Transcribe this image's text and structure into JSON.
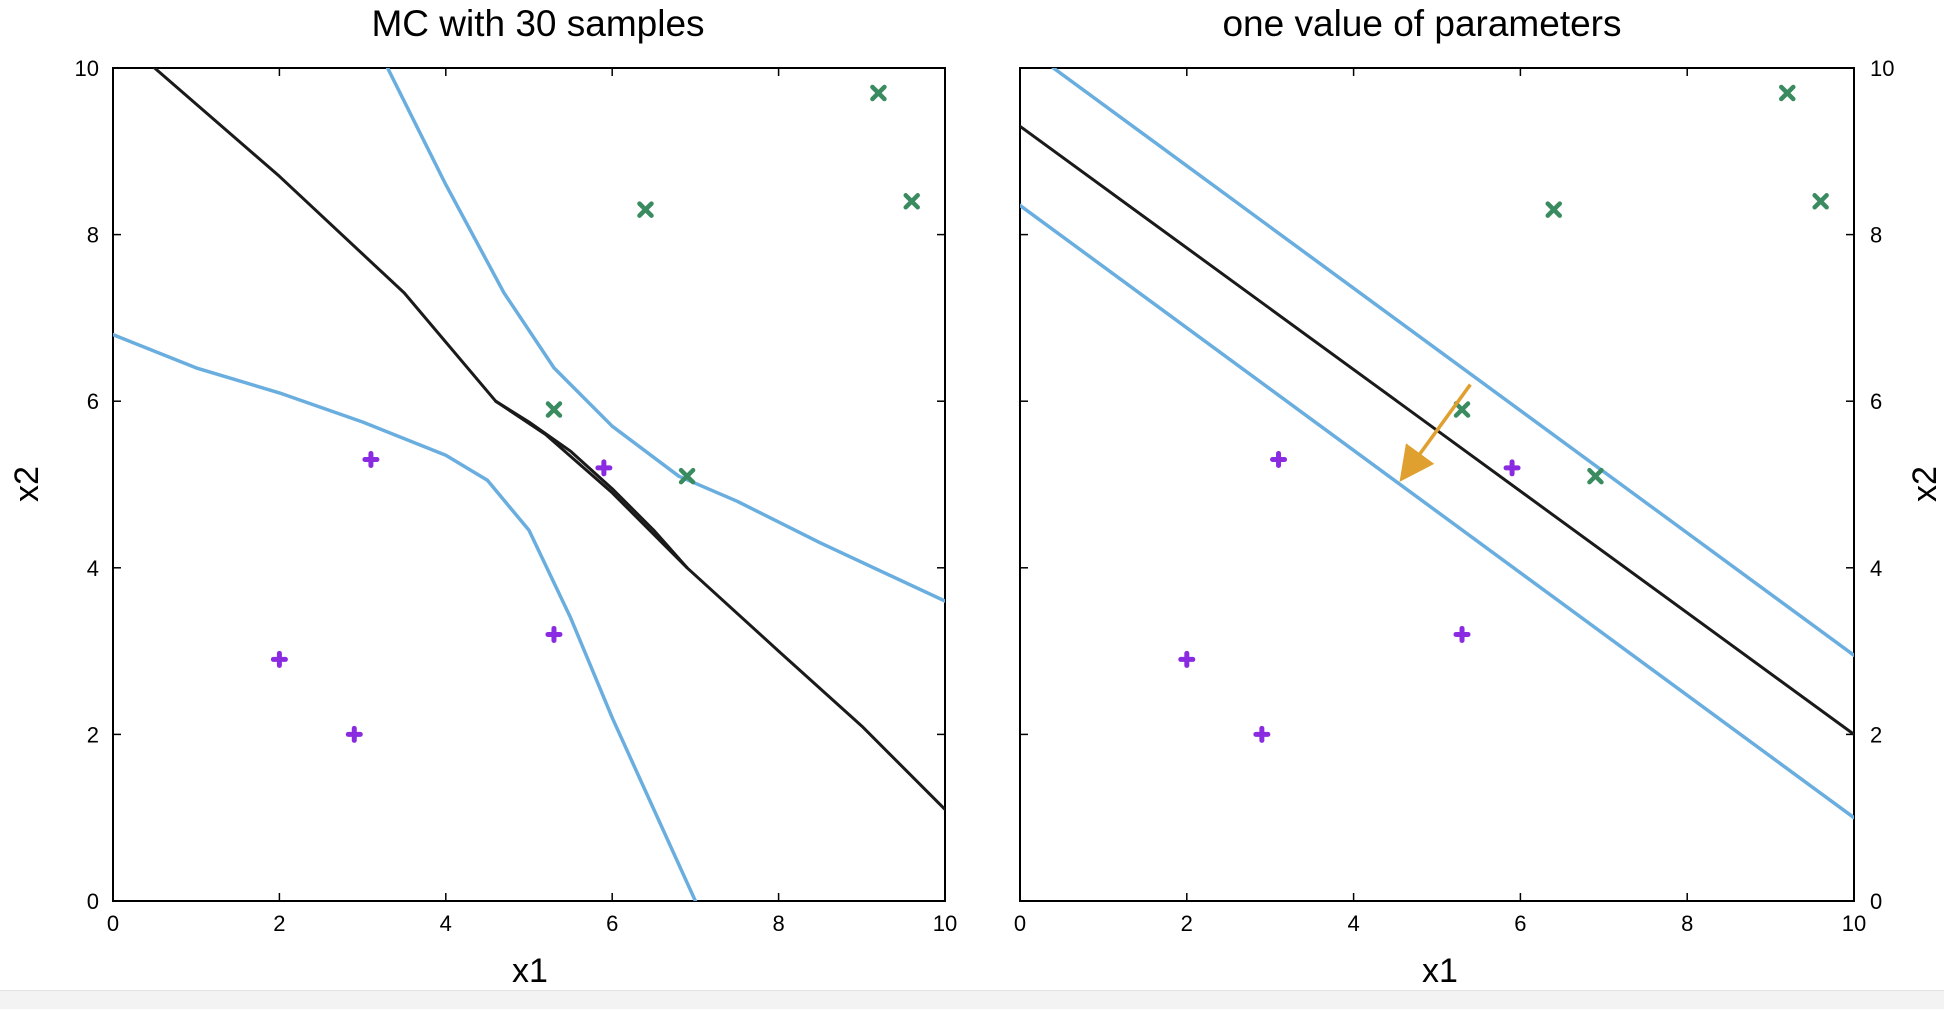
{
  "colors": {
    "boundary": "#1a1a1a",
    "margin": "#6aaee0",
    "class_pos": "#3a8c60",
    "class_neg": "#8a2be2",
    "arrow": "#e0a030",
    "frame": "#000000"
  },
  "chart_data": [
    {
      "type": "scatter",
      "title": "MC with 30 samples",
      "xlabel": "x1",
      "ylabel": "x2",
      "xlim": [
        0,
        10
      ],
      "ylim": [
        0,
        10
      ],
      "xticks": [
        "0",
        "2",
        "4",
        "6",
        "8",
        "10"
      ],
      "yticks": [
        "0",
        "2",
        "4",
        "6",
        "8",
        "10"
      ],
      "yaxis_side": "left",
      "grid": false,
      "points_pos": [
        [
          5.3,
          5.9
        ],
        [
          6.4,
          8.3
        ],
        [
          6.9,
          5.1
        ],
        [
          9.2,
          9.7
        ],
        [
          9.6,
          8.4
        ]
      ],
      "points_neg": [
        [
          2.0,
          2.9
        ],
        [
          2.9,
          2.0
        ],
        [
          3.1,
          5.3
        ],
        [
          5.3,
          3.2
        ],
        [
          5.9,
          5.2
        ]
      ],
      "lines": [
        {
          "role": "boundary",
          "points": [
            [
              0.5,
              10.0
            ],
            [
              2.0,
              8.7
            ],
            [
              3.5,
              7.3
            ],
            [
              4.6,
              6.0
            ],
            [
              5.2,
              5.6
            ],
            [
              6.0,
              4.9
            ],
            [
              6.9,
              4.0
            ],
            [
              8.0,
              3.0
            ],
            [
              9.0,
              2.1
            ],
            [
              10.0,
              1.1
            ]
          ]
        },
        {
          "role": "boundary",
          "points": [
            [
              4.6,
              6.0
            ],
            [
              5.0,
              5.75
            ],
            [
              5.5,
              5.4
            ],
            [
              6.0,
              4.95
            ],
            [
              6.5,
              4.45
            ],
            [
              6.9,
              4.0
            ]
          ]
        },
        {
          "role": "margin",
          "points": [
            [
              3.3,
              10.0
            ],
            [
              4.0,
              8.6
            ],
            [
              4.7,
              7.3
            ],
            [
              5.3,
              6.4
            ],
            [
              6.0,
              5.7
            ],
            [
              6.8,
              5.1
            ],
            [
              7.5,
              4.8
            ],
            [
              8.5,
              4.3
            ],
            [
              10.0,
              3.6
            ]
          ]
        },
        {
          "role": "margin",
          "points": [
            [
              0.0,
              6.8
            ],
            [
              1.0,
              6.4
            ],
            [
              2.0,
              6.1
            ],
            [
              3.0,
              5.75
            ],
            [
              4.0,
              5.35
            ],
            [
              4.5,
              5.05
            ],
            [
              5.0,
              4.45
            ],
            [
              5.5,
              3.4
            ],
            [
              6.0,
              2.2
            ],
            [
              6.5,
              1.1
            ],
            [
              7.0,
              0.0
            ]
          ]
        }
      ]
    },
    {
      "type": "scatter",
      "title": "one value of parameters",
      "xlabel": "x1",
      "ylabel": "x2",
      "xlim": [
        0,
        10
      ],
      "ylim": [
        0,
        10
      ],
      "xticks": [
        "0",
        "2",
        "4",
        "6",
        "8",
        "10"
      ],
      "yticks": [
        "0",
        "2",
        "4",
        "6",
        "8",
        "10"
      ],
      "yaxis_side": "right",
      "grid": false,
      "points_pos": [
        [
          5.3,
          5.9
        ],
        [
          6.4,
          8.3
        ],
        [
          6.9,
          5.1
        ],
        [
          9.2,
          9.7
        ],
        [
          9.6,
          8.4
        ]
      ],
      "points_neg": [
        [
          2.0,
          2.9
        ],
        [
          2.9,
          2.0
        ],
        [
          3.1,
          5.3
        ],
        [
          5.3,
          3.2
        ],
        [
          5.9,
          5.2
        ]
      ],
      "lines": [
        {
          "role": "boundary",
          "points": [
            [
              0.0,
              9.3
            ],
            [
              10.0,
              2.0
            ]
          ]
        },
        {
          "role": "margin",
          "points": [
            [
              0.4,
              10.0
            ],
            [
              10.0,
              2.95
            ]
          ]
        },
        {
          "role": "margin",
          "points": [
            [
              0.0,
              8.35
            ],
            [
              10.0,
              1.0
            ]
          ]
        }
      ],
      "arrow": {
        "from": [
          5.4,
          6.2
        ],
        "to": [
          4.6,
          5.1
        ]
      }
    }
  ]
}
